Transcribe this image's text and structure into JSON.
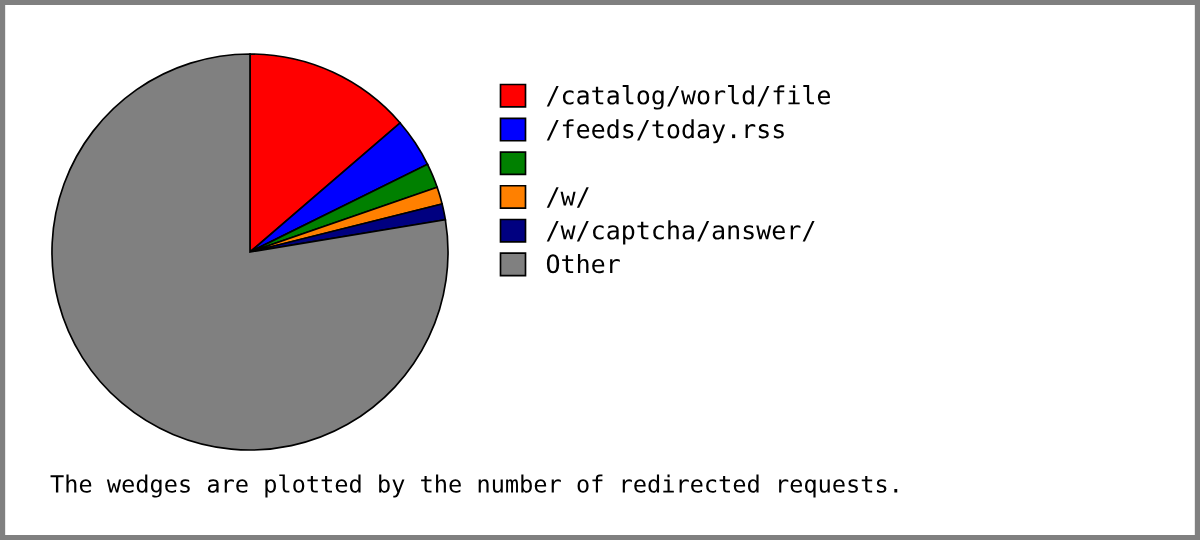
{
  "chart_data": {
    "type": "pie",
    "categories": [
      "/catalog/world/file",
      "/feeds/today.rss",
      null,
      "/w/",
      "/w/captcha/answer/",
      "Other"
    ],
    "values": [
      13.7,
      4.0,
      2.0,
      1.4,
      1.3,
      77.6
    ],
    "colors": [
      "#ff0000",
      "#0000ff",
      "#008000",
      "#ff8000",
      "#000080",
      "#808080"
    ],
    "legend": "right",
    "annotations": [
      "The wedges are plotted by the number of redirected requests."
    ]
  }
}
